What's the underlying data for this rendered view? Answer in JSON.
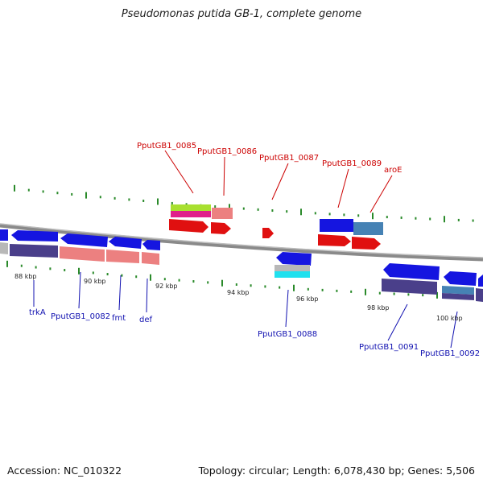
{
  "title": "Pseudomonas putida GB-1, complete genome",
  "footer": {
    "accession": "Accession: NC_010322",
    "topology": "Topology: circular; Length: 6,078,430 bp; Genes: 5,506"
  },
  "colors": {
    "backbone": "#8a8a8a",
    "blue_cds": "#1515e0",
    "red_cds": "#e01010",
    "salmon": "#ec8080",
    "purple": "#4a3f8a",
    "steel": "#4682b4",
    "cyan": "#20e0ee",
    "lime": "#a8e030",
    "magenta": "#e0208a",
    "grey": "#b8b8b8",
    "tick": "#2a8a2a",
    "label_red": "#cc0000",
    "label_blue": "#1010b0"
  },
  "tick_labels": [
    "88 kbp",
    "90 kbp",
    "92 kbp",
    "94 kbp",
    "96 kbp",
    "98 kbp",
    "100 kbp"
  ],
  "gene_labels": {
    "top": [
      "PputGB1_0085",
      "PputGB1_0086",
      "PputGB1_0087",
      "PputGB1_0089",
      "aroE"
    ],
    "bottom": [
      "trkA",
      "PputGB1_0082",
      "fmt",
      "def",
      "PputGB1_0088",
      "PputGB1_0091",
      "PputGB1_0092"
    ]
  }
}
